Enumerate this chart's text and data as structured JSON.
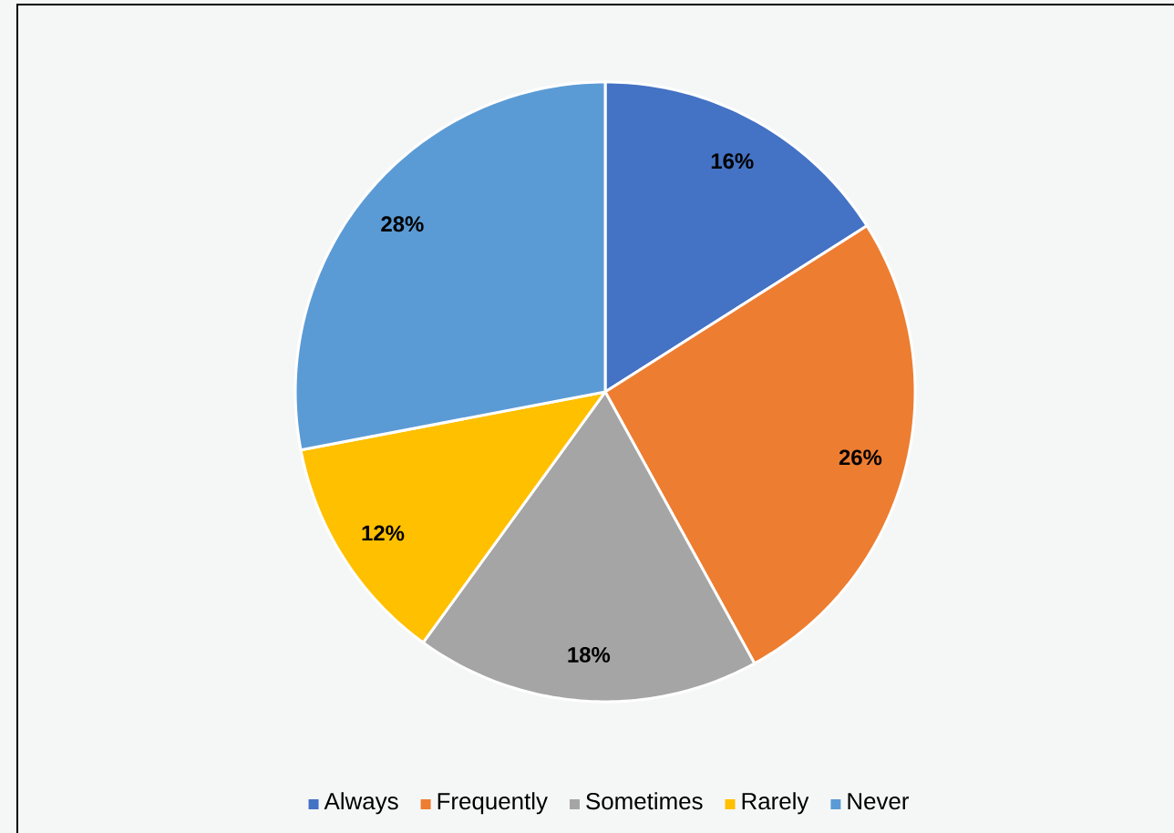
{
  "chart_data": {
    "type": "pie",
    "categories": [
      "Always",
      "Frequently",
      "Sometimes",
      "Rarely",
      "Never"
    ],
    "values": [
      16,
      26,
      18,
      12,
      28
    ],
    "colors": [
      "#4472c4",
      "#ed7d31",
      "#a5a5a5",
      "#ffc000",
      "#5b9bd5"
    ],
    "value_labels": [
      "16%",
      "26%",
      "18%",
      "12%",
      "28%"
    ],
    "legend": "bottom"
  }
}
